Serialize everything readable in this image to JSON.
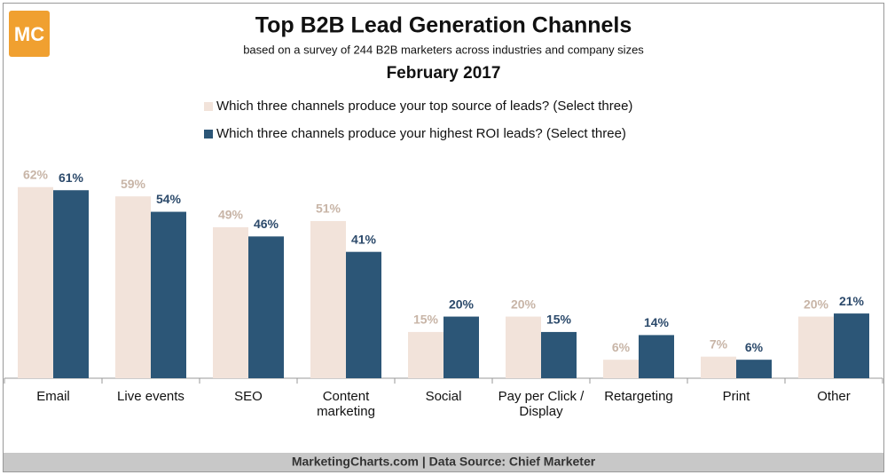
{
  "chart_data": {
    "type": "bar",
    "title": "Top B2B Lead Generation Channels",
    "subtitle": "based on a survey of 244 B2B marketers across industries and company sizes",
    "date": "February 2017",
    "logo": "MC",
    "source": "MarketingCharts.com | Data Source: Chief Marketer",
    "categories": [
      "Email",
      "Live events",
      "SEO",
      "Content marketing",
      "Social",
      "Pay per Click / Display",
      "Retargeting",
      "Print",
      "Other"
    ],
    "series": [
      {
        "name": "Which three channels produce your top source of leads? (Select three)",
        "color": "#f2e3da",
        "label_color": "#c8b5a7",
        "values": [
          62,
          59,
          49,
          51,
          15,
          20,
          6,
          7,
          20
        ],
        "value_labels": [
          "62%",
          "59%",
          "49%",
          "51%",
          "15%",
          "20%",
          "6%",
          "7%",
          "20%"
        ]
      },
      {
        "name": "Which three channels produce your highest ROI leads? (Select three)",
        "color": "#2c5677",
        "label_color": "#2c4a6b",
        "values": [
          61,
          54,
          46,
          41,
          20,
          15,
          14,
          6,
          21
        ],
        "value_labels": [
          "61%",
          "54%",
          "46%",
          "41%",
          "20%",
          "15%",
          "14%",
          "6%",
          "21%"
        ]
      }
    ],
    "ylim": [
      0,
      70
    ]
  }
}
